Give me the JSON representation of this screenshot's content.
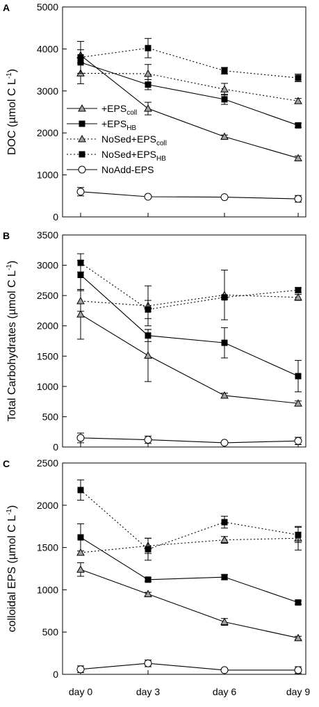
{
  "chart_data": [
    {
      "type": "line",
      "panel_label": "A",
      "ylabel": "DOC (µmol C L",
      "ylabel_sup": "-1",
      "ylabel_close": ")",
      "categories": [
        "day 0",
        "day 3",
        "day 6",
        "day 9"
      ],
      "ylim": [
        0,
        5000
      ],
      "yticks": [
        "0",
        "1000",
        "2000",
        "3000",
        "4000",
        "5000"
      ],
      "legend_position": "middle-left",
      "series": [
        {
          "name": "+EPS",
          "name_sub": "coll",
          "marker": "triangle",
          "dash": "solid",
          "values": [
            3850,
            2580,
            1910,
            1400
          ],
          "err": [
            0,
            150,
            40,
            50
          ]
        },
        {
          "name": "+EPS",
          "name_sub": "HB",
          "marker": "square",
          "dash": "solid",
          "values": [
            3680,
            3150,
            2800,
            2180
          ],
          "err": [
            300,
            120,
            120,
            50
          ]
        },
        {
          "name": "NoSed+EPS",
          "name_sub": "coll",
          "marker": "triangle",
          "dash": "dotted",
          "values": [
            3420,
            3410,
            3040,
            2760
          ],
          "err": [
            250,
            220,
            140,
            60
          ]
        },
        {
          "name": "NoSed+EPS",
          "name_sub": "HB",
          "marker": "square",
          "dash": "dotted",
          "values": [
            3800,
            4020,
            3480,
            3310
          ],
          "err": [
            380,
            230,
            80,
            90
          ]
        },
        {
          "name": "NoAdd-EPS",
          "name_sub": "",
          "marker": "circle",
          "dash": "solid",
          "values": [
            600,
            480,
            470,
            430
          ],
          "err": [
            100,
            30,
            30,
            80
          ]
        }
      ]
    },
    {
      "type": "line",
      "panel_label": "B",
      "ylabel": "Total Carbohydrates (µmol C L",
      "ylabel_sup": "-1",
      "ylabel_close": ")",
      "categories": [
        "day 0",
        "day 3",
        "day 6",
        "day 9"
      ],
      "ylim": [
        0,
        3500
      ],
      "yticks": [
        "0",
        "500",
        "1000",
        "1500",
        "2000",
        "2500",
        "3000",
        "3500"
      ],
      "series": [
        {
          "name": "+EPS",
          "name_sub": "coll",
          "marker": "triangle",
          "dash": "solid",
          "values": [
            2190,
            1510,
            850,
            720
          ],
          "err": [
            410,
            430,
            40,
            40
          ]
        },
        {
          "name": "+EPS",
          "name_sub": "HB",
          "marker": "square",
          "dash": "solid",
          "values": [
            2840,
            1840,
            1720,
            1170
          ],
          "err": [
            240,
            100,
            250,
            260
          ]
        },
        {
          "name": "NoSed+EPS",
          "name_sub": "coll",
          "marker": "triangle",
          "dash": "dotted",
          "values": [
            2410,
            2330,
            2510,
            2470
          ],
          "err": [
            170,
            330,
            410,
            50
          ]
        },
        {
          "name": "NoSed+EPS",
          "name_sub": "HB",
          "marker": "square",
          "dash": "dotted",
          "values": [
            3040,
            2270,
            2470,
            2590
          ],
          "err": [
            150,
            150,
            30,
            40
          ]
        },
        {
          "name": "NoAdd-EPS",
          "name_sub": "",
          "marker": "circle",
          "dash": "solid",
          "values": [
            150,
            120,
            70,
            100
          ],
          "err": [
            80,
            60,
            20,
            60
          ]
        }
      ]
    },
    {
      "type": "line",
      "panel_label": "C",
      "ylabel": "colloidal EPS (µmol C L",
      "ylabel_sup": "-1",
      "ylabel_close": ")",
      "categories": [
        "day 0",
        "day 3",
        "day 6",
        "day 9"
      ],
      "ylim": [
        0,
        2500
      ],
      "yticks": [
        "0",
        "500",
        "1000",
        "1500",
        "2000",
        "2500"
      ],
      "series": [
        {
          "name": "+EPS",
          "name_sub": "coll",
          "marker": "triangle",
          "dash": "solid",
          "values": [
            1240,
            950,
            620,
            430
          ],
          "err": [
            80,
            20,
            40,
            20
          ]
        },
        {
          "name": "+EPS",
          "name_sub": "HB",
          "marker": "square",
          "dash": "solid",
          "values": [
            1620,
            1120,
            1150,
            850
          ],
          "err": [
            160,
            20,
            30,
            20
          ]
        },
        {
          "name": "NoSed+EPS",
          "name_sub": "coll",
          "marker": "triangle",
          "dash": "dotted",
          "values": [
            1440,
            1520,
            1590,
            1610
          ],
          "err": [
            0,
            90,
            40,
            140
          ]
        },
        {
          "name": "NoSed+EPS",
          "name_sub": "HB",
          "marker": "square",
          "dash": "dotted",
          "values": [
            2180,
            1480,
            1800,
            1650
          ],
          "err": [
            120,
            130,
            70,
            90
          ]
        },
        {
          "name": "NoAdd-EPS",
          "name_sub": "",
          "marker": "circle",
          "dash": "solid",
          "values": [
            60,
            130,
            50,
            50
          ],
          "err": [
            40,
            40,
            20,
            40
          ]
        }
      ]
    }
  ]
}
